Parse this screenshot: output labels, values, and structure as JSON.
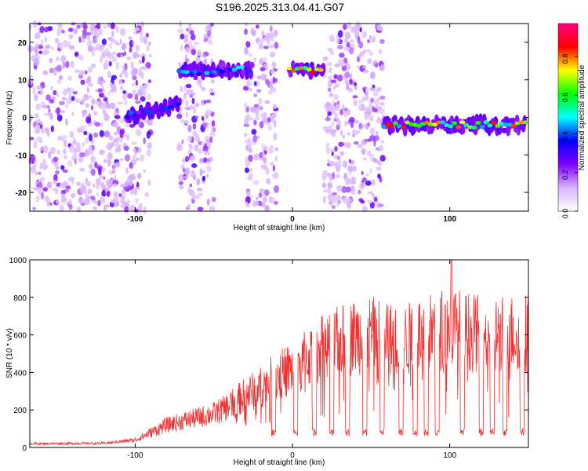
{
  "title": "S196.2025.313.04.41.G07",
  "chart_data": [
    {
      "type": "heatmap",
      "xlabel": "Height of straight line (km)",
      "ylabel": "Frequency (Hz)",
      "xlim": [
        -167,
        150
      ],
      "ylim": [
        -25,
        25
      ],
      "xticks": [
        -100,
        0,
        100
      ],
      "yticks": [
        -20,
        -10,
        0,
        10,
        20
      ],
      "colorbar": {
        "label": "Normalized spectral amplitude",
        "range": [
          0,
          0.97
        ],
        "ticks": [
          0.0,
          0.2,
          0.4,
          0.6,
          0.8
        ],
        "colors": [
          "#ffffff",
          "#d9b3ff",
          "#8000ff",
          "#0000ff",
          "#00ffff",
          "#00ff00",
          "#ffff00",
          "#ff0000",
          "#ff0080"
        ]
      },
      "regions": [
        {
          "x": [
            -167,
            -110
          ],
          "f": [
            -25,
            25
          ],
          "amp": 0.08,
          "kind": "noise"
        },
        {
          "x": [
            -110,
            -90
          ],
          "f": [
            -25,
            25
          ],
          "amp": 0.05,
          "kind": "noise"
        },
        {
          "x": [
            -72,
            -50
          ],
          "f": [
            -25,
            25
          ],
          "amp": 0.07,
          "kind": "noise"
        },
        {
          "x": [
            -30,
            -10
          ],
          "f": [
            -25,
            25
          ],
          "amp": 0.08,
          "kind": "noise"
        },
        {
          "x": [
            20,
            58
          ],
          "f": [
            -25,
            25
          ],
          "amp": 0.08,
          "kind": "noise"
        }
      ],
      "tracks": [
        {
          "x": [
            -105,
            -72
          ],
          "f0": 0.5,
          "slope": 0.08,
          "amp": 0.45
        },
        {
          "x": [
            -72,
            -25
          ],
          "f0": 12,
          "slope": 0.02,
          "amp": 0.5
        },
        {
          "x": [
            -2,
            20
          ],
          "f0": 12.5,
          "slope": 0.0,
          "amp": 0.95
        },
        {
          "x": [
            58,
            148
          ],
          "f0": -2.0,
          "slope": 0.0,
          "amp": 0.9
        }
      ]
    },
    {
      "type": "line",
      "xlabel": "Height of straight line (km)",
      "ylabel": "SNR (10 * v/v)",
      "xlim": [
        -167,
        150
      ],
      "ylim": [
        0,
        1000
      ],
      "xticks": [
        -100,
        0,
        100
      ],
      "yticks": [
        0,
        200,
        400,
        600,
        800,
        1000
      ],
      "color": "#ee3333",
      "envelope": {
        "x": [
          -167,
          -120,
          -100,
          -90,
          -80,
          -70,
          -60,
          -50,
          -40,
          -30,
          -20,
          -10,
          0,
          10,
          20,
          30,
          40,
          50,
          60,
          70,
          80,
          90,
          100,
          110,
          120,
          130,
          140,
          150
        ],
        "y": [
          20,
          22,
          40,
          80,
          120,
          140,
          160,
          180,
          220,
          280,
          320,
          380,
          420,
          480,
          530,
          560,
          590,
          600,
          580,
          560,
          600,
          620,
          640,
          620,
          600,
          600,
          610,
          620
        ]
      },
      "peaks": [
        {
          "x": 101,
          "y": 1000
        },
        {
          "x": 97,
          "y": 760
        }
      ],
      "dropouts": [
        -12,
        2,
        14,
        25,
        35,
        46,
        57,
        69,
        78,
        85,
        92,
        108,
        120,
        127,
        135,
        146
      ]
    }
  ]
}
